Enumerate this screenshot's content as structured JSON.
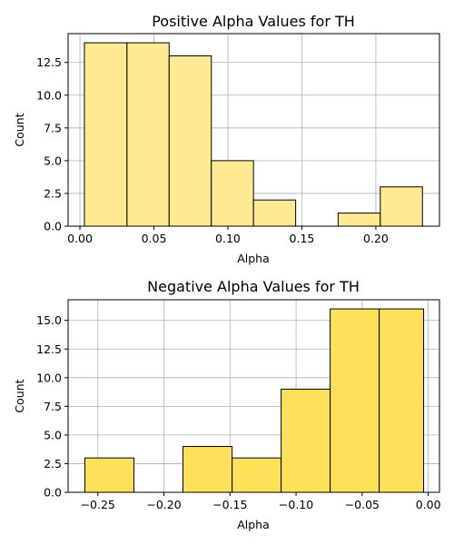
{
  "chart_data": [
    {
      "type": "bar",
      "title": "Positive Alpha Values for TH",
      "xlabel": "Alpha",
      "ylabel": "Count",
      "xlim": [
        -0.008,
        0.243
      ],
      "ylim": [
        0,
        14.7
      ],
      "xticks": [
        0.0,
        0.05,
        0.1,
        0.15,
        0.2
      ],
      "xtick_labels": [
        "0.00",
        "0.05",
        "0.10",
        "0.15",
        "0.20"
      ],
      "yticks": [
        0.0,
        2.5,
        5.0,
        7.5,
        10.0,
        12.5
      ],
      "ytick_labels": [
        "0.0",
        "2.5",
        "5.0",
        "7.5",
        "10.0",
        "12.5"
      ],
      "grid": true,
      "color": "#ffe993",
      "bins": [
        {
          "x0": 0.003,
          "x1": 0.0318,
          "value": 14
        },
        {
          "x0": 0.0318,
          "x1": 0.0603,
          "value": 14
        },
        {
          "x0": 0.0603,
          "x1": 0.0888,
          "value": 13
        },
        {
          "x0": 0.0888,
          "x1": 0.1173,
          "value": 5
        },
        {
          "x0": 0.1173,
          "x1": 0.1458,
          "value": 2
        },
        {
          "x0": 0.1458,
          "x1": 0.1745,
          "value": 0
        },
        {
          "x0": 0.1745,
          "x1": 0.203,
          "value": 1
        },
        {
          "x0": 0.203,
          "x1": 0.2315,
          "value": 3
        }
      ]
    },
    {
      "type": "bar",
      "title": "Negative Alpha Values for TH",
      "xlabel": "Alpha",
      "ylabel": "Count",
      "xlim": [
        -0.2725,
        0.0085
      ],
      "ylim": [
        0,
        16.8
      ],
      "xticks": [
        -0.25,
        -0.2,
        -0.15,
        -0.1,
        -0.05,
        0.0
      ],
      "xtick_labels": [
        "−0.25",
        "−0.20",
        "−0.15",
        "−0.10",
        "−0.05",
        "0.00"
      ],
      "yticks": [
        0.0,
        2.5,
        5.0,
        7.5,
        10.0,
        12.5,
        15.0
      ],
      "ytick_labels": [
        "0.0",
        "2.5",
        "5.0",
        "7.5",
        "10.0",
        "12.5",
        "15.0"
      ],
      "grid": true,
      "color": "#ffe05a",
      "bins": [
        {
          "x0": -0.2598,
          "x1": -0.2227,
          "value": 3
        },
        {
          "x0": -0.2227,
          "x1": -0.1856,
          "value": 0
        },
        {
          "x0": -0.1856,
          "x1": -0.1484,
          "value": 4
        },
        {
          "x0": -0.1484,
          "x1": -0.1113,
          "value": 3
        },
        {
          "x0": -0.1113,
          "x1": -0.0742,
          "value": 9
        },
        {
          "x0": -0.0742,
          "x1": -0.0371,
          "value": 16
        },
        {
          "x0": -0.0371,
          "x1": -0.0035,
          "value": 16
        }
      ]
    }
  ]
}
